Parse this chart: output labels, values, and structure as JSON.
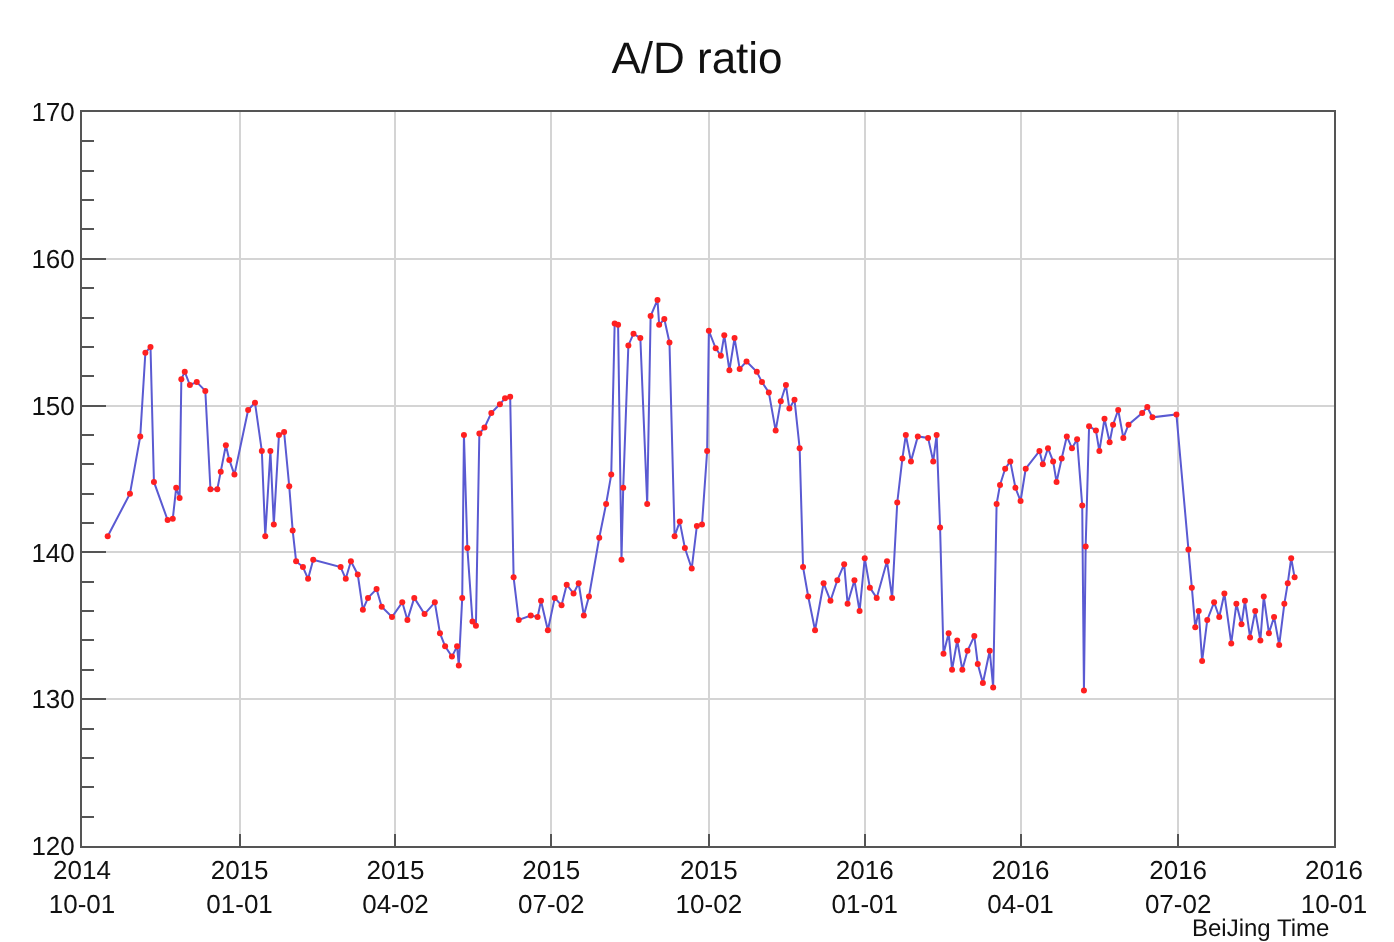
{
  "chart_data": {
    "type": "line",
    "title": "A/D ratio",
    "xlabel": "BeiJing Time",
    "x": [
      "2014-10-16",
      "2014-10-29",
      "2014-11-04",
      "2014-11-07",
      "2014-11-10",
      "2014-11-12",
      "2014-11-20",
      "2014-11-23",
      "2014-11-25",
      "2014-11-27",
      "2014-11-28",
      "2014-11-30",
      "2014-12-03",
      "2014-12-07",
      "2014-12-12",
      "2014-12-15",
      "2014-12-19",
      "2014-12-21",
      "2014-12-24",
      "2014-12-26",
      "2014-12-29",
      "2015-01-06",
      "2015-01-10",
      "2015-01-14",
      "2015-01-16",
      "2015-01-19",
      "2015-01-21",
      "2015-01-24",
      "2015-01-27",
      "2015-01-30",
      "2015-02-01",
      "2015-02-03",
      "2015-02-07",
      "2015-02-10",
      "2015-02-13",
      "2015-03-01",
      "2015-03-04",
      "2015-03-07",
      "2015-03-11",
      "2015-03-14",
      "2015-03-17",
      "2015-03-22",
      "2015-03-25",
      "2015-03-31",
      "2015-04-06",
      "2015-04-09",
      "2015-04-13",
      "2015-04-19",
      "2015-04-25",
      "2015-04-28",
      "2015-05-01",
      "2015-05-05",
      "2015-05-08",
      "2015-05-09",
      "2015-05-11",
      "2015-05-12",
      "2015-05-14",
      "2015-05-17",
      "2015-05-19",
      "2015-05-21",
      "2015-05-24",
      "2015-05-28",
      "2015-06-02",
      "2015-06-05",
      "2015-06-08",
      "2015-06-10",
      "2015-06-13",
      "2015-06-20",
      "2015-06-24",
      "2015-06-26",
      "2015-06-30",
      "2015-07-04",
      "2015-07-08",
      "2015-07-11",
      "2015-07-15",
      "2015-07-18",
      "2015-07-21",
      "2015-07-24",
      "2015-07-30",
      "2015-08-03",
      "2015-08-06",
      "2015-08-08",
      "2015-08-10",
      "2015-08-12",
      "2015-08-13",
      "2015-08-16",
      "2015-08-19",
      "2015-08-23",
      "2015-08-27",
      "2015-08-29",
      "2015-09-02",
      "2015-09-03",
      "2015-09-06",
      "2015-09-09",
      "2015-09-12",
      "2015-09-15",
      "2015-09-18",
      "2015-09-22",
      "2015-09-25",
      "2015-09-28",
      "2015-10-01",
      "2015-10-02",
      "2015-10-06",
      "2015-10-09",
      "2015-10-11",
      "2015-10-14",
      "2015-10-17",
      "2015-10-20",
      "2015-10-24",
      "2015-10-30",
      "2015-11-02",
      "2015-11-06",
      "2015-11-10",
      "2015-11-13",
      "2015-11-16",
      "2015-11-18",
      "2015-11-21",
      "2015-11-24",
      "2015-11-26",
      "2015-11-29",
      "2015-12-03",
      "2015-12-08",
      "2015-12-12",
      "2015-12-16",
      "2015-12-20",
      "2015-12-22",
      "2015-12-26",
      "2015-12-29",
      "2016-01-01",
      "2016-01-04",
      "2016-01-08",
      "2016-01-14",
      "2016-01-17",
      "2016-01-20",
      "2016-01-23",
      "2016-01-25",
      "2016-01-28",
      "2016-02-01",
      "2016-02-07",
      "2016-02-10",
      "2016-02-12",
      "2016-02-14",
      "2016-02-16",
      "2016-02-19",
      "2016-02-21",
      "2016-02-24",
      "2016-02-27",
      "2016-03-01",
      "2016-03-05",
      "2016-03-07",
      "2016-03-10",
      "2016-03-14",
      "2016-03-16",
      "2016-03-18",
      "2016-03-20",
      "2016-03-23",
      "2016-03-26",
      "2016-03-29",
      "2016-04-01",
      "2016-04-04",
      "2016-04-12",
      "2016-04-14",
      "2016-04-17",
      "2016-04-20",
      "2016-04-22",
      "2016-04-25",
      "2016-04-28",
      "2016-05-01",
      "2016-05-04",
      "2016-05-07",
      "2016-05-08",
      "2016-05-09",
      "2016-05-11",
      "2016-05-15",
      "2016-05-17",
      "2016-05-20",
      "2016-05-23",
      "2016-05-25",
      "2016-05-28",
      "2016-05-31",
      "2016-06-03",
      "2016-06-11",
      "2016-06-14",
      "2016-06-17",
      "2016-07-01",
      "2016-07-08",
      "2016-07-10",
      "2016-07-12",
      "2016-07-14",
      "2016-07-16",
      "2016-07-19",
      "2016-07-23",
      "2016-07-26",
      "2016-07-29",
      "2016-08-02",
      "2016-08-05",
      "2016-08-08",
      "2016-08-10",
      "2016-08-13",
      "2016-08-16",
      "2016-08-19",
      "2016-08-21",
      "2016-08-24",
      "2016-08-27",
      "2016-08-30",
      "2016-09-02",
      "2016-09-04",
      "2016-09-06",
      "2016-09-08"
    ],
    "series": [
      {
        "color": "#5a5ad2",
        "values": [
          141.1,
          144.0,
          147.9,
          153.6,
          154.0,
          144.8,
          142.2,
          142.3,
          144.4,
          143.7,
          151.8,
          152.3,
          151.4,
          151.6,
          151.0,
          144.3,
          144.3,
          145.5,
          147.3,
          146.3,
          145.3,
          149.7,
          150.2,
          146.9,
          141.1,
          146.9,
          141.9,
          148.0,
          148.2,
          144.5,
          141.5,
          139.4,
          139.0,
          138.2,
          139.5,
          139.0,
          138.2,
          139.4,
          138.5,
          136.1,
          136.9,
          137.5,
          136.3,
          135.6,
          136.6,
          135.4,
          136.9,
          135.8,
          136.6,
          134.5,
          133.6,
          132.9,
          133.6,
          132.3,
          136.9,
          148.0,
          140.3,
          135.3,
          135.0,
          148.1,
          148.5,
          149.5,
          150.1,
          150.5,
          150.6,
          138.3,
          135.4,
          135.7,
          135.6,
          136.7,
          134.7,
          136.9,
          136.4,
          137.8,
          137.2,
          137.9,
          135.7,
          137.0,
          141.0,
          143.3,
          145.3,
          155.6,
          155.5,
          139.5,
          144.4,
          154.1,
          154.9,
          154.6,
          143.3,
          156.1,
          157.2,
          155.5,
          155.9,
          154.3,
          141.1,
          142.1,
          140.3,
          138.9,
          141.8,
          141.9,
          146.9,
          155.1,
          153.9,
          153.4,
          154.8,
          152.4,
          154.6,
          152.5,
          153.0,
          152.3,
          151.6,
          150.9,
          148.3,
          150.3,
          151.4,
          149.8,
          150.4,
          147.1,
          139.0,
          137.0,
          134.7,
          137.9,
          136.7,
          138.1,
          139.2,
          136.5,
          138.1,
          136.0,
          139.6,
          137.6,
          136.9,
          139.4,
          136.9,
          143.4,
          146.4,
          148.0,
          146.2,
          147.9,
          147.8,
          146.2,
          148.0,
          141.7,
          133.1,
          134.5,
          132.0,
          134.0,
          132.0,
          133.3,
          134.3,
          132.4,
          131.1,
          133.3,
          130.8,
          143.3,
          144.6,
          145.7,
          146.2,
          144.4,
          143.5,
          145.7,
          146.9,
          146.0,
          147.1,
          146.2,
          144.8,
          146.4,
          147.9,
          147.1,
          147.7,
          143.2,
          130.6,
          140.4,
          148.6,
          148.3,
          146.9,
          149.1,
          147.5,
          148.7,
          149.7,
          147.8,
          148.7,
          149.5,
          149.9,
          149.2,
          149.4,
          140.2,
          137.6,
          134.9,
          136.0,
          132.6,
          135.4,
          136.6,
          135.6,
          137.2,
          133.8,
          136.5,
          135.1,
          136.7,
          134.2,
          136.0,
          134.0,
          137.0,
          134.5,
          135.6,
          133.7,
          136.5,
          137.9,
          139.6,
          138.3
        ],
        "colors": [
          "#ff2020",
          "#ff2020",
          "#ff2020",
          "#ff2020",
          "#ff2020",
          "#ff2020",
          "#ff2020",
          "#ff2020",
          "#ff2020",
          "#ff2020",
          "#ff2020",
          "#ff2020",
          "#ff2020",
          "#ff2020",
          "#ff2020",
          "#ff2020",
          "#ff2020",
          "#ff2020",
          "#ff2020",
          "#ff2020",
          "#ff2020",
          "#ff2020",
          "#ff2020",
          "#ff2020",
          "#ff2020",
          "#ff2020",
          "#ff2020",
          "#ff2020",
          "#ff2020",
          "#ff2020",
          "#ff2020",
          "#ff2020",
          "#ff2020",
          "#ff2020",
          "#ff2020",
          "#ff2020",
          "#ff2020",
          "#ff2020",
          "#ff2020",
          "#ff2020",
          "#ff2020",
          "#ff2020",
          "#ff2020",
          "#ff2020",
          "#ff2020",
          "#ff2020",
          "#ff2020",
          "#ff2020",
          "#ff2020",
          "#ff2020",
          "#ff2020",
          "#ff2020",
          "#ff2020",
          "#ff2020",
          "#ff2020",
          "#ff2020",
          "#ff2020",
          "#ff2020",
          "#ff2020",
          "#ff2020",
          "#ff2020",
          "#ff2020",
          "#ff2020",
          "#ff2020",
          "#ff2020",
          "#ff2020",
          "#ff2020",
          "#ff2020",
          "#ff2020",
          "#ff2020",
          "#ff2020",
          "#ff2020",
          "#ff2020",
          "#ff2020",
          "#ff2020",
          "#ff2020",
          "#ff2020",
          "#ff2020",
          "#ff2020",
          "#ff2020",
          "#ff2020",
          "#ff2020",
          "#ff2020",
          "#ff2020",
          "#ff2020",
          "#ff2020",
          "#ff2020",
          "#ff2020",
          "#ff2020",
          "#ff2020",
          "#ff2020",
          "#ff2020",
          "#ff2020",
          "#ff2020",
          "#ff2020",
          "#ff2020",
          "#ff2020",
          "#ff2020",
          "#ff2020",
          "#ff2020",
          "#ff2020",
          "#ff2020",
          "#ff2020",
          "#ff2020",
          "#ff2020",
          "#ff2020",
          "#ff2020",
          "#ff2020",
          "#ff2020",
          "#ff2020",
          "#ff2020",
          "#ff2020",
          "#ff2020",
          "#ff2020",
          "#ff2020",
          "#ff2020",
          "#ff2020",
          "#ff2020",
          "#ff2020",
          "#ff2020",
          "#ff2020",
          "#ff2020",
          "#ff2020",
          "#ff2020",
          "#ff2020",
          "#ff2020",
          "#ff2020",
          "#ff2020",
          "#ff2020",
          "#ff2020",
          "#ff2020",
          "#ff2020",
          "#ff2020",
          "#ff2020",
          "#ff2020",
          "#ff2020",
          "#ff2020",
          "#ff2020",
          "#ff2020",
          "#ff2020",
          "#ff2020",
          "#ff2020",
          "#ff2020",
          "#ff2020",
          "#ff2020",
          "#ff2020",
          "#ff2020",
          "#ff2020",
          "#ff2020",
          "#ff2020",
          "#ff2020",
          "#ff2020",
          "#ff2020",
          "#ff2020",
          "#ff2020",
          "#ff2020",
          "#ff2020",
          "#ff2020",
          "#ff2020",
          "#ff2020",
          "#ff2020",
          "#ff2020",
          "#ff2020",
          "#ff2020",
          "#ff2020",
          "#ff2020",
          "#ff2020",
          "#ff2020",
          "#ff2020",
          "#ff2020",
          "#ff2020",
          "#ff2020",
          "#ff2020",
          "#ff2020",
          "#ff2020",
          "#ff2020",
          "#ff2020",
          "#ff2020",
          "#ff2020",
          "#ff2020",
          "#ff2020",
          "#ff2020",
          "#ff2020",
          "#ff2020",
          "#ff2020",
          "#ff2020",
          "#ff2020",
          "#ff2020",
          "#ff2020",
          "#ff2020",
          "#ff2020",
          "#ff2020",
          "#ff2020",
          "#ff2020",
          "#ff2020",
          "#ff2020",
          "#ff2020",
          "#ff2020",
          "#ff2020",
          "#ff2020",
          "#ff2020",
          "#ff2020",
          "#ff2020",
          "#ff2020",
          "#ff2020",
          "#ff2020",
          "#ff2020",
          "#ff2020",
          "#ff2020"
        ]
      }
    ],
    "xlim": [
      "2014-10-01",
      "2016-10-01"
    ],
    "xticks": [
      {
        "value": "2014-10-01",
        "label": "2014\n10-01"
      },
      {
        "value": "2015-01-01",
        "label": "2015\n01-01"
      },
      {
        "value": "2015-04-02",
        "label": "2015\n04-02"
      },
      {
        "value": "2015-07-02",
        "label": "2015\n07-02"
      },
      {
        "value": "2015-10-02",
        "label": "2015\n10-02"
      },
      {
        "value": "2016-01-01",
        "label": "2016\n01-01"
      },
      {
        "value": "2016-04-01",
        "label": "2016\n04-01"
      },
      {
        "value": "2016-07-02",
        "label": "2016\n07-02"
      },
      {
        "value": "2016-10-01",
        "label": "2016\n10-01"
      }
    ],
    "ylim": [
      120,
      170
    ],
    "yticks": [
      120,
      130,
      140,
      150,
      160,
      170
    ],
    "grid": true,
    "marker": "circle",
    "line_style": "solid"
  }
}
